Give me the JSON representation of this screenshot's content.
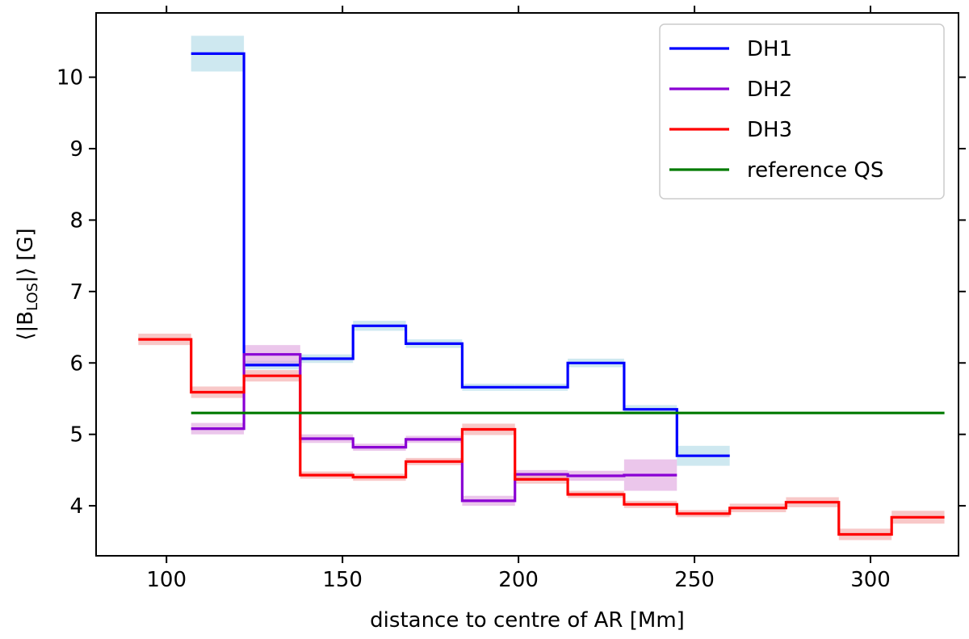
{
  "chart_data": {
    "type": "line",
    "step": "post",
    "xlabel": "distance to centre of AR [Mm]",
    "ylabel_text": "⟨|B",
    "ylabel_sub": "LOS",
    "ylabel_tail": "|⟩ [G]",
    "xlim": [
      80,
      325
    ],
    "ylim": [
      3.3,
      10.9
    ],
    "xticks": [
      100,
      150,
      200,
      250,
      300
    ],
    "yticks": [
      4,
      5,
      6,
      7,
      8,
      9,
      10
    ],
    "xtick_labels": [
      "100",
      "150",
      "200",
      "250",
      "300"
    ],
    "ytick_labels": [
      "4",
      "5",
      "6",
      "7",
      "8",
      "9",
      "10"
    ],
    "legend_position": "top-right",
    "series": [
      {
        "name": "DH1",
        "color": "#0000ff",
        "band_color": "#add8e6",
        "edges": [
          107,
          122,
          138,
          153,
          168,
          184,
          199,
          214,
          230,
          245,
          260
        ],
        "values": [
          10.33,
          5.97,
          6.06,
          6.52,
          6.27,
          5.66,
          5.66,
          6.0,
          5.35,
          4.7
        ],
        "errors": [
          0.25,
          0.06,
          0.06,
          0.07,
          0.06,
          0.05,
          0.05,
          0.06,
          0.06,
          0.14
        ]
      },
      {
        "name": "DH2",
        "color": "#8a00d4",
        "band_color": "#dda0dd",
        "edges": [
          107,
          122,
          138,
          153,
          168,
          184,
          199,
          214,
          230,
          245
        ],
        "values": [
          5.08,
          6.12,
          4.94,
          4.82,
          4.93,
          4.07,
          4.44,
          4.42,
          4.43
        ],
        "errors": [
          0.08,
          0.13,
          0.06,
          0.05,
          0.05,
          0.07,
          0.06,
          0.07,
          0.22
        ]
      },
      {
        "name": "DH3",
        "color": "#ff0000",
        "band_color": "#f4a3a3",
        "edges": [
          92,
          107,
          122,
          138,
          153,
          168,
          184,
          199,
          214,
          230,
          245,
          260,
          276,
          291,
          306,
          321
        ],
        "values": [
          6.33,
          5.59,
          5.82,
          4.43,
          4.4,
          4.62,
          5.07,
          4.37,
          4.16,
          4.02,
          3.89,
          3.97,
          4.05,
          3.6,
          3.84
        ],
        "errors": [
          0.08,
          0.08,
          0.08,
          0.05,
          0.05,
          0.05,
          0.08,
          0.06,
          0.05,
          0.05,
          0.05,
          0.06,
          0.07,
          0.08,
          0.09
        ]
      },
      {
        "name": "reference QS",
        "color": "#007a00",
        "band_color": "",
        "edges": [
          107,
          321
        ],
        "values": [
          5.3
        ],
        "errors": [
          0
        ]
      }
    ]
  }
}
